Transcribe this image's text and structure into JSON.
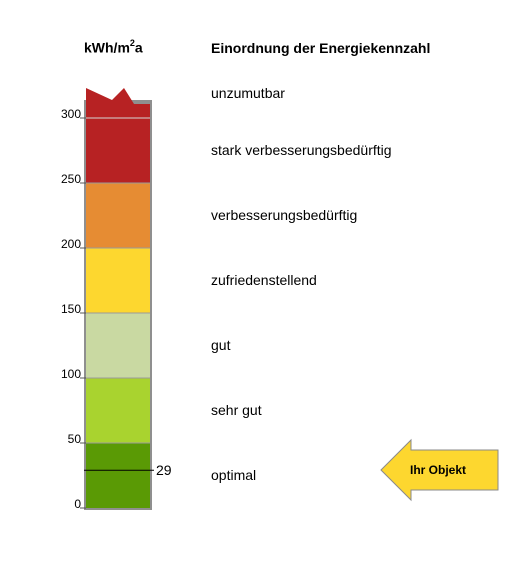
{
  "unit": {
    "main": "kWh/m",
    "sup": "2",
    "tail": "a"
  },
  "heading": "Einordnung der Energiekennzahl",
  "chart_data": {
    "type": "bar",
    "yaxis": {
      "ticks": [
        0,
        50,
        100,
        150,
        200,
        250,
        300
      ],
      "range": [
        0,
        320
      ]
    },
    "classes": [
      {
        "label": "optimal",
        "from": 0,
        "to": 50,
        "color": "#5A9A05"
      },
      {
        "label": "sehr gut",
        "from": 50,
        "to": 100,
        "color": "#A9D32F"
      },
      {
        "label": "gut",
        "from": 100,
        "to": 150,
        "color": "#C9D9A2"
      },
      {
        "label": "zufriedenstellend",
        "from": 150,
        "to": 200,
        "color": "#FDD72F"
      },
      {
        "label": "verbesserungsbedürftig",
        "from": 200,
        "to": 250,
        "color": "#E68C33"
      },
      {
        "label": "stark verbesserungsbedürftig",
        "from": 250,
        "to": 300,
        "color": "#B72223"
      },
      {
        "label": "unzumutbar",
        "from": 300,
        "to": null,
        "color": "#B72223"
      }
    ],
    "value": 29,
    "value_label": "29",
    "marker_label": "Ihr Objekt",
    "marker_color": "#FDD72F"
  }
}
